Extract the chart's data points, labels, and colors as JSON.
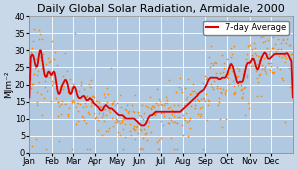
{
  "title": "Daily Global Solar Radiation, Armidale, 2000",
  "ylabel": "MJm⁻²",
  "ylim": [
    0,
    40
  ],
  "yticks": [
    0,
    5,
    10,
    15,
    20,
    25,
    30,
    35,
    40
  ],
  "months": [
    "Jan",
    "Feb",
    "Mar",
    "Apr",
    "May",
    "Jun",
    "Jul",
    "Aug",
    "Sep",
    "Oct",
    "Nov",
    "Dec"
  ],
  "background_color": "#c8d8e8",
  "plot_bg_color": "#b0c8e0",
  "scatter_color": "#ff8800",
  "line_color": "#dd0000",
  "title_fontsize": 8.0,
  "axis_fontsize": 6.5,
  "month_starts": [
    0,
    31,
    60,
    91,
    121,
    152,
    182,
    213,
    244,
    274,
    305,
    335,
    366
  ],
  "avg7": [
    26,
    27,
    28,
    29,
    30,
    29,
    28,
    27,
    26,
    25,
    24,
    25,
    26,
    27,
    31,
    32,
    31,
    29,
    27,
    25,
    24,
    23,
    22,
    21,
    22,
    23,
    24,
    25,
    24,
    23,
    22,
    22,
    23,
    24,
    25,
    24,
    23,
    21,
    19,
    18,
    17,
    16,
    17,
    18,
    19,
    20,
    20,
    20,
    21,
    21,
    22,
    22,
    21,
    20,
    19,
    18,
    17,
    16,
    17,
    18,
    19,
    19,
    20,
    20,
    19,
    18,
    17,
    16,
    16,
    16,
    16,
    16,
    16,
    16,
    17,
    17,
    17,
    16,
    16,
    15,
    15,
    15,
    16,
    16,
    16,
    16,
    16,
    15,
    15,
    15,
    14,
    14,
    14,
    14,
    14,
    13,
    13,
    13,
    13,
    12,
    12,
    12,
    13,
    13,
    14,
    14,
    14,
    14,
    14,
    13,
    13,
    13,
    13,
    13,
    13,
    13,
    13,
    12,
    12,
    12,
    12,
    12,
    11,
    11,
    11,
    11,
    11,
    11,
    11,
    11,
    11,
    11,
    10,
    10,
    10,
    10,
    10,
    10,
    10,
    10,
    10,
    10,
    10,
    10,
    10,
    10,
    10,
    10,
    9,
    9,
    9,
    9,
    9,
    8,
    8,
    8,
    8,
    8,
    8,
    8,
    8,
    8,
    9,
    9,
    10,
    10,
    11,
    11,
    11,
    11,
    11,
    11,
    11,
    12,
    12,
    12,
    12,
    12,
    12,
    12,
    12,
    12,
    12,
    12,
    12,
    12,
    12,
    12,
    12,
    12,
    12,
    12,
    12,
    12,
    12,
    12,
    12,
    12,
    12,
    12,
    12,
    12,
    12,
    12,
    12,
    12,
    12,
    12,
    12,
    12,
    12,
    12,
    13,
    13,
    13,
    13,
    13,
    14,
    14,
    14,
    14,
    14,
    15,
    15,
    15,
    15,
    15,
    16,
    16,
    16,
    16,
    16,
    17,
    17,
    17,
    17,
    18,
    18,
    18,
    18,
    18,
    18,
    19,
    19,
    19,
    20,
    20,
    21,
    21,
    22,
    22,
    22,
    22,
    22,
    22,
    22,
    22,
    22,
    22,
    22,
    22,
    22,
    22,
    21,
    21,
    22,
    22,
    22,
    22,
    22,
    22,
    22,
    22,
    22,
    23,
    24,
    24,
    25,
    26,
    26,
    27,
    26,
    25,
    24,
    24,
    23,
    22,
    21,
    20,
    20,
    20,
    21,
    22,
    21,
    20,
    20,
    21,
    22,
    23,
    24,
    25,
    26,
    27,
    27,
    26,
    26,
    26,
    27,
    27,
    28,
    28,
    28,
    27,
    26,
    25,
    24,
    24,
    24,
    25,
    26,
    27,
    28,
    28,
    28,
    29,
    29,
    30,
    30,
    29,
    28,
    28,
    27,
    27,
    28,
    28,
    28,
    28,
    28,
    29,
    29,
    29,
    29,
    29,
    29,
    29,
    29,
    29,
    29,
    29,
    29,
    29,
    29,
    29,
    29,
    29,
    29,
    29,
    29,
    30,
    29,
    28,
    27,
    27,
    27,
    27
  ]
}
